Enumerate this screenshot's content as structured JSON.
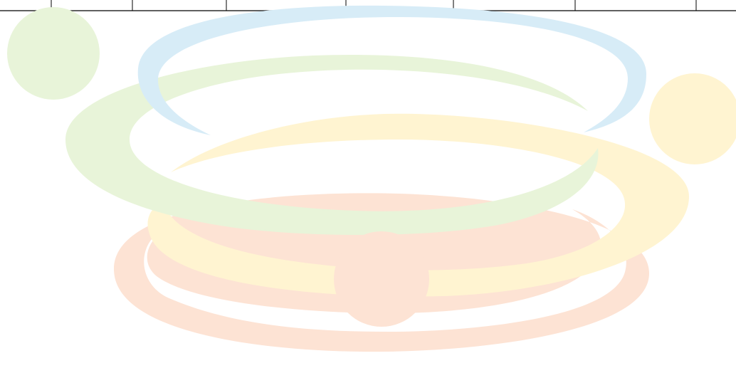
{
  "palette": {
    "blue": "#d7ecf7",
    "green": "#e8f4d9",
    "yellow": "#fff4d1",
    "orange": "#fde3d4",
    "table_line": "#000000",
    "background": "#ffffff"
  },
  "decoration": {
    "rings": [
      "blue",
      "green",
      "yellow",
      "orange"
    ],
    "circles": [
      "green",
      "yellow",
      "orange"
    ]
  },
  "table_fragment": {
    "visible_text": []
  }
}
